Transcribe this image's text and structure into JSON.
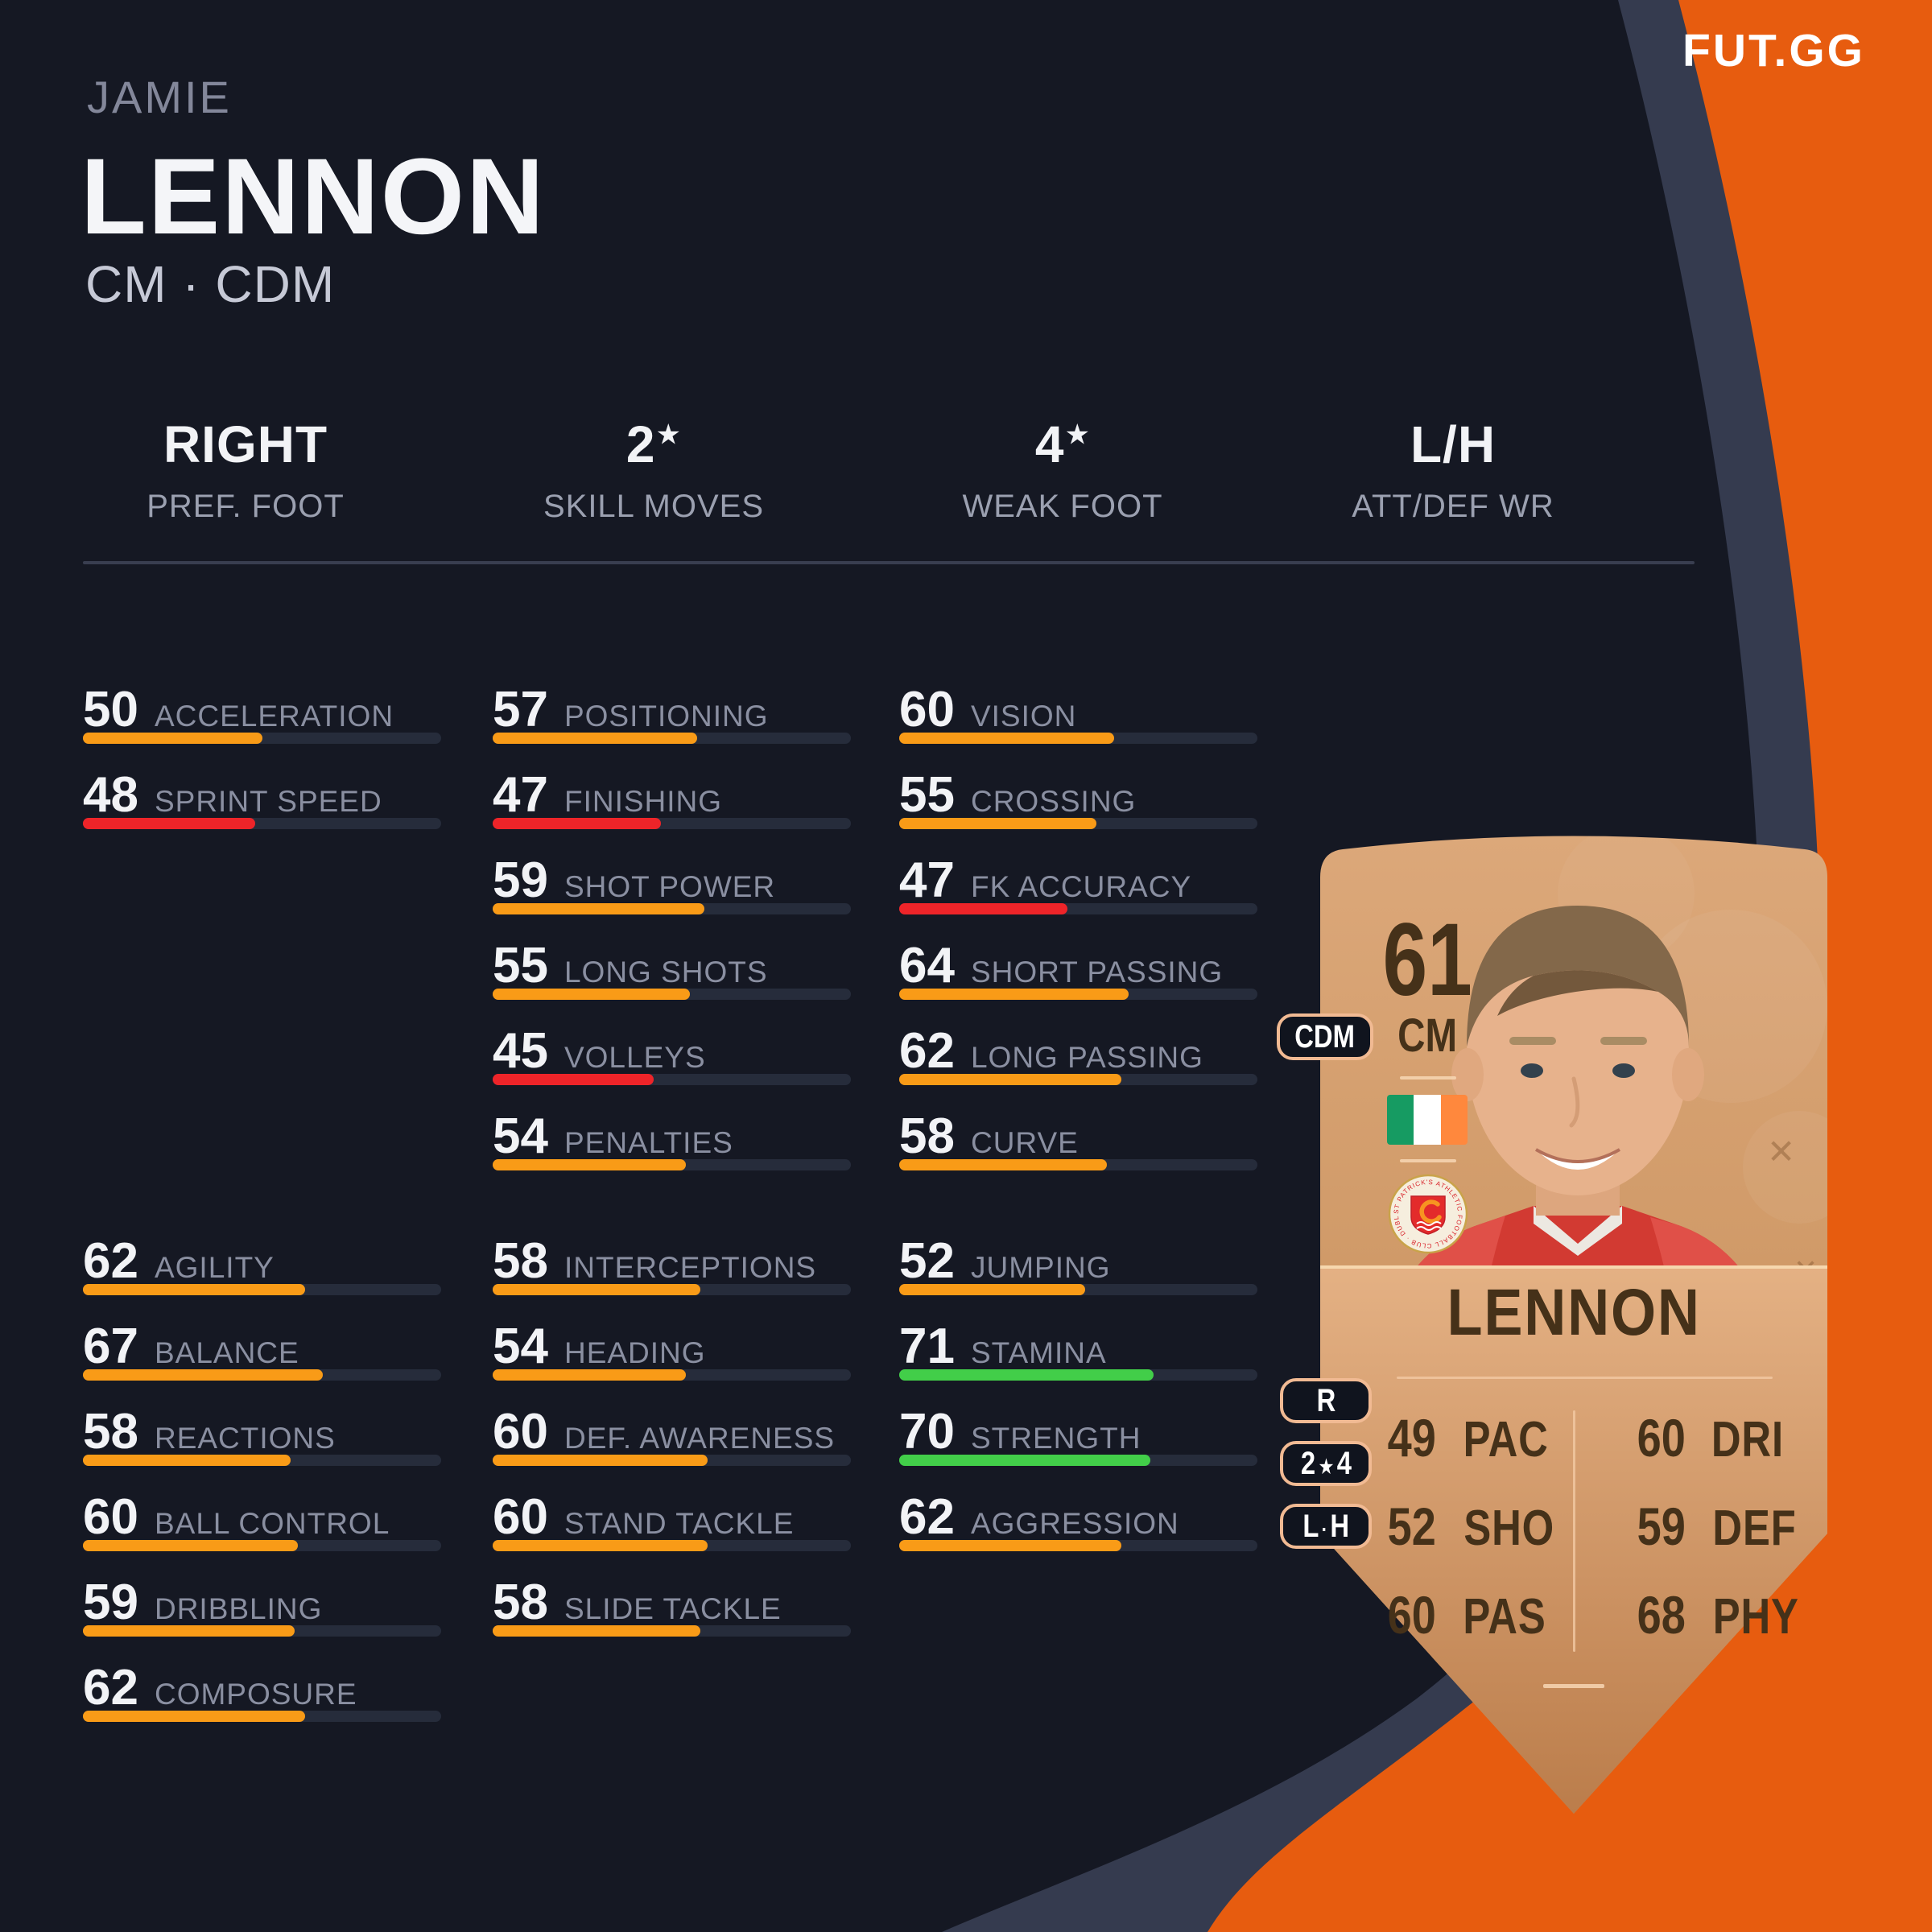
{
  "logo": {
    "text": "FUT.GG"
  },
  "header": {
    "first_name": "JAMIE",
    "last_name": "LENNON",
    "positions": "CM · CDM"
  },
  "summary": {
    "items": [
      {
        "value": "RIGHT",
        "star": "",
        "label": "PREF. FOOT"
      },
      {
        "value": "2",
        "star": "★",
        "label": "SKILL MOVES"
      },
      {
        "value": "4",
        "star": "★",
        "label": "WEAK FOOT"
      },
      {
        "value": "L/H",
        "star": "",
        "label": "ATT/DEF WR"
      }
    ]
  },
  "bars": {
    "low_color": "#ee2429",
    "mid_color": "#f99b17",
    "high_color": "#42ce49",
    "track_color": "#262c3b",
    "low_max": 49,
    "mid_max": 69
  },
  "stats": {
    "groups": [
      {
        "id": "pace",
        "items": [
          {
            "value": 50,
            "label": "ACCELERATION"
          },
          {
            "value": 48,
            "label": "SPRINT SPEED"
          }
        ]
      },
      {
        "id": "shooting",
        "items": [
          {
            "value": 57,
            "label": "POSITIONING"
          },
          {
            "value": 47,
            "label": "FINISHING"
          },
          {
            "value": 59,
            "label": "SHOT POWER"
          },
          {
            "value": 55,
            "label": "LONG SHOTS"
          },
          {
            "value": 45,
            "label": "VOLLEYS"
          },
          {
            "value": 54,
            "label": "PENALTIES"
          }
        ]
      },
      {
        "id": "passing",
        "items": [
          {
            "value": 60,
            "label": "VISION"
          },
          {
            "value": 55,
            "label": "CROSSING"
          },
          {
            "value": 47,
            "label": "FK ACCURACY"
          },
          {
            "value": 64,
            "label": "SHORT PASSING"
          },
          {
            "value": 62,
            "label": "LONG PASSING"
          },
          {
            "value": 58,
            "label": "CURVE"
          }
        ]
      },
      {
        "id": "dribbling",
        "items": [
          {
            "value": 62,
            "label": "AGILITY"
          },
          {
            "value": 67,
            "label": "BALANCE"
          },
          {
            "value": 58,
            "label": "REACTIONS"
          },
          {
            "value": 60,
            "label": "BALL CONTROL"
          },
          {
            "value": 59,
            "label": "DRIBBLING"
          },
          {
            "value": 62,
            "label": "COMPOSURE"
          }
        ]
      },
      {
        "id": "defending",
        "items": [
          {
            "value": 58,
            "label": "INTERCEPTIONS"
          },
          {
            "value": 54,
            "label": "HEADING"
          },
          {
            "value": 60,
            "label": "DEF. AWARENESS"
          },
          {
            "value": 60,
            "label": "STAND TACKLE"
          },
          {
            "value": 58,
            "label": "SLIDE TACKLE"
          }
        ]
      },
      {
        "id": "physical",
        "items": [
          {
            "value": 52,
            "label": "JUMPING"
          },
          {
            "value": 71,
            "label": "STAMINA"
          },
          {
            "value": 70,
            "label": "STRENGTH"
          },
          {
            "value": 62,
            "label": "AGGRESSION"
          }
        ]
      }
    ]
  },
  "card": {
    "rating": "61",
    "rating_position": "CM",
    "alt_position": "CDM",
    "name": "LENNON",
    "nation_flag_icon": "ireland-flag",
    "club_badge_icon": "st-patricks-athletic-badge",
    "badge_text": "ST PATRICK'S ATHLETIC FOOTBALL CLUB · DUBLIN 1929",
    "pills": [
      {
        "parts": [
          "R"
        ]
      },
      {
        "parts": [
          "2",
          "★",
          "4"
        ]
      },
      {
        "parts": [
          "L",
          "·",
          "H"
        ]
      }
    ],
    "stats_left": [
      {
        "value": "49",
        "label": "PAC"
      },
      {
        "value": "52",
        "label": "SHO"
      },
      {
        "value": "60",
        "label": "PAS"
      }
    ],
    "stats_right": [
      {
        "value": "60",
        "label": "DRI"
      },
      {
        "value": "59",
        "label": "DEF"
      },
      {
        "value": "68",
        "label": "PHY"
      }
    ],
    "flag_colors": {
      "green": "#169b62",
      "white": "#ffffff",
      "orange": "#ff883d"
    }
  }
}
